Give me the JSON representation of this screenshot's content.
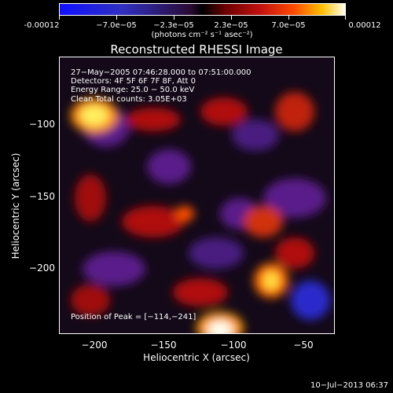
{
  "colorbar": {
    "labels": [
      "-0.00012",
      "−7.0e−05",
      "−2.3e−05",
      "2.3e−05",
      "7.0e−05",
      "0.00012"
    ],
    "units": "(photons cm⁻² s⁻¹ asec⁻²)"
  },
  "title": "Reconstructed RHESSI Image",
  "annotations": {
    "time": "27−May−2005 07:46:28.000 to 07:51:00.000",
    "detectors": "Detectors: 4F 5F 6F 7F 8F, Att 0",
    "energy": "Energy Range: 25.0 − 50.0 keV",
    "clean": "Clean     Total counts: 3.05E+03",
    "peak": "Position of Peak = [−114,−241]"
  },
  "axes": {
    "xlabel": "Heliocentric X (arcsec)",
    "ylabel": "Heliocentric Y (arcsec)",
    "xticks": [
      "−200",
      "−150",
      "−100",
      "−50"
    ],
    "yticks": [
      "−100",
      "−150",
      "−200"
    ]
  },
  "footer": {
    "date": "10−Jul−2013 06:37"
  }
}
